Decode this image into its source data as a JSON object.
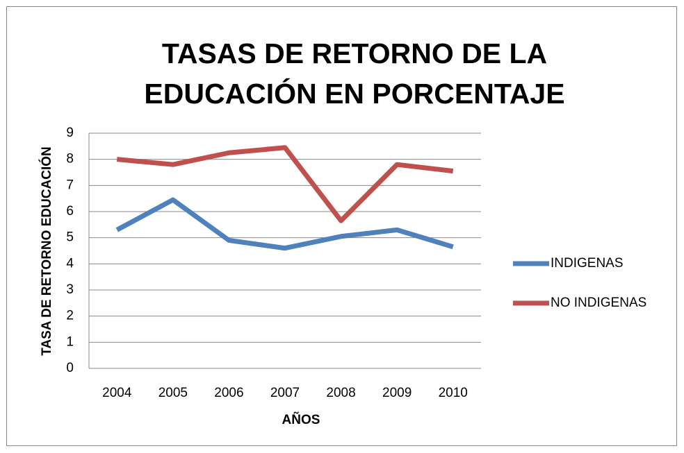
{
  "chart_data": {
    "type": "line",
    "title": "TASAS DE RETORNO DE LA EDUCACIÓN EN PORCENTAJE",
    "x_label": "AÑOS",
    "y_label": "TASA DE RETORNO EDUCACIÓN",
    "categories": [
      "2004",
      "2005",
      "2006",
      "2007",
      "2008",
      "2009",
      "2010"
    ],
    "series": [
      {
        "name": "INDIGENAS",
        "color": "#4f81bd",
        "values": [
          5.3,
          6.45,
          4.9,
          4.6,
          5.05,
          5.3,
          4.65
        ]
      },
      {
        "name": "NO INDIGENAS",
        "color": "#c0504d",
        "values": [
          8.0,
          7.8,
          8.25,
          8.45,
          5.65,
          7.8,
          7.55
        ]
      }
    ],
    "ylim": [
      0,
      9
    ],
    "yticks": [
      0,
      1,
      2,
      3,
      4,
      5,
      6,
      7,
      8,
      9
    ],
    "grid": true,
    "legend": "right"
  }
}
